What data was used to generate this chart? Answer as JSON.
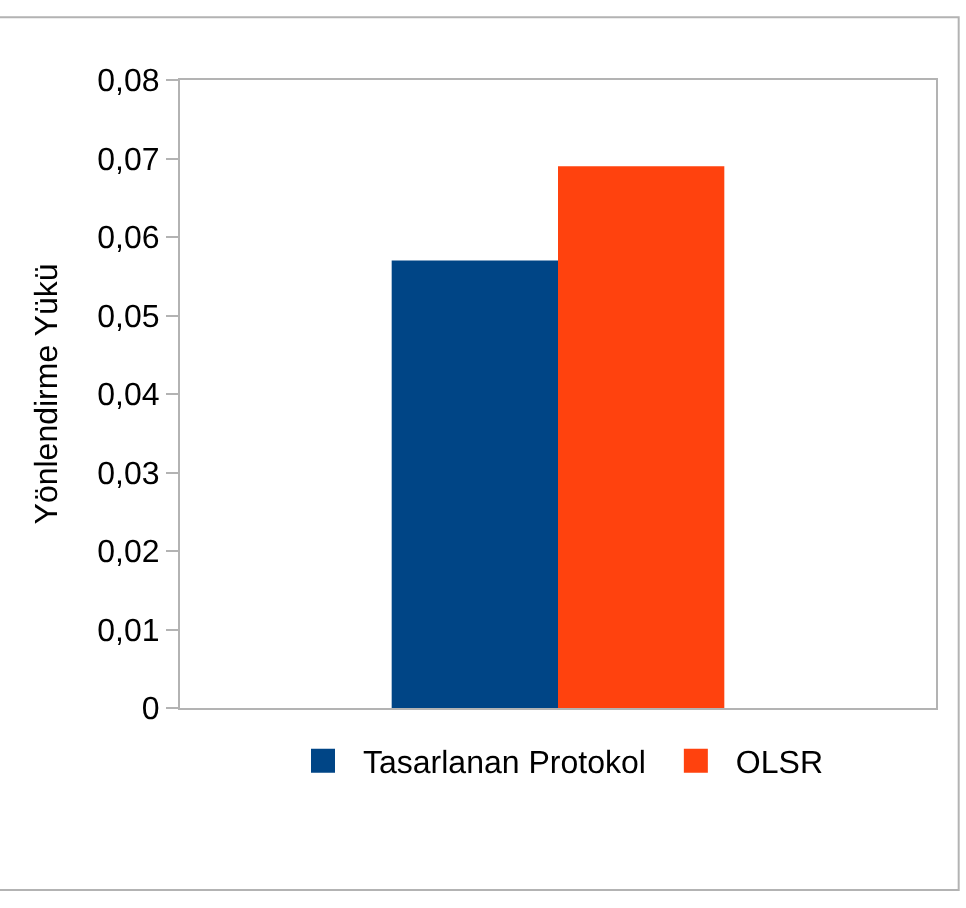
{
  "chart_data": {
    "type": "bar",
    "ylabel": "Yönlendirme Yükü",
    "categories": [
      null
    ],
    "series": [
      {
        "name": "Tasarlanan Protokol",
        "color": "#004586",
        "values": [
          0.057
        ]
      },
      {
        "name": "OLSR",
        "color": "#ff420e",
        "values": [
          0.069
        ]
      }
    ],
    "ylim": [
      0,
      0.08
    ],
    "yticks": [
      {
        "value": 0,
        "label": "0"
      },
      {
        "value": 0.01,
        "label": "0,01"
      },
      {
        "value": 0.02,
        "label": "0,02"
      },
      {
        "value": 0.03,
        "label": "0,03"
      },
      {
        "value": 0.04,
        "label": "0,04"
      },
      {
        "value": 0.05,
        "label": "0,05"
      },
      {
        "value": 0.06,
        "label": "0,06"
      },
      {
        "value": 0.07,
        "label": "0,07"
      },
      {
        "value": 0.08,
        "label": "0,08"
      }
    ],
    "grid": false,
    "legend": "bottom"
  }
}
